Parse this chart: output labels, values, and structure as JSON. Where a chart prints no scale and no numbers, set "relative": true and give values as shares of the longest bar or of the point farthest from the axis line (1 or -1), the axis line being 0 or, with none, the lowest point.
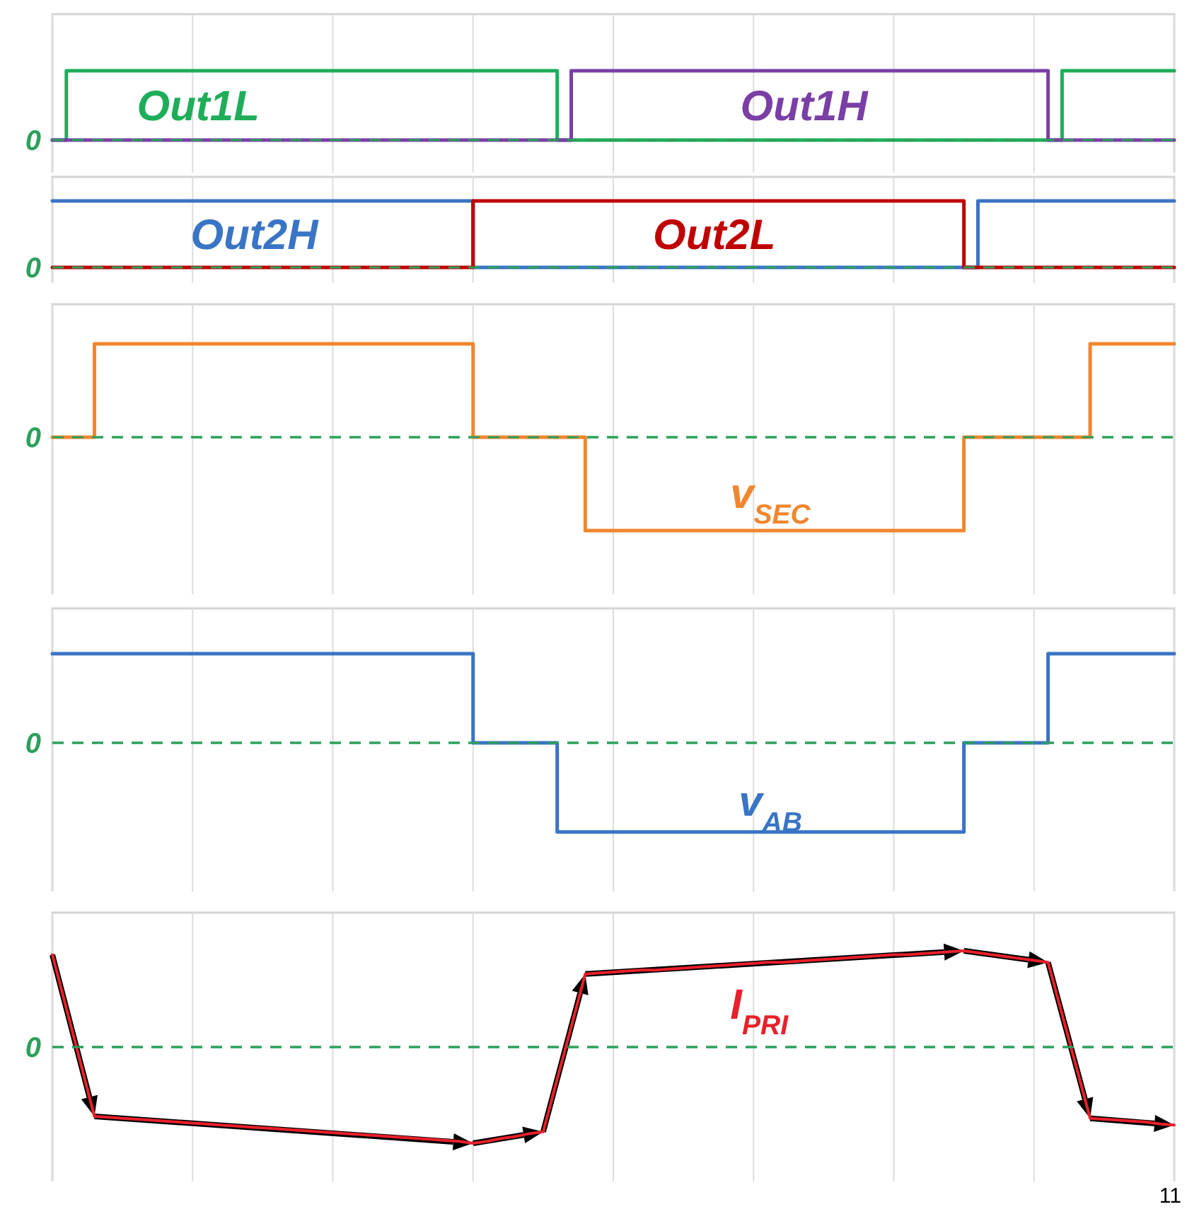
{
  "chart_data": [
    {
      "type": "step",
      "relative": true,
      "grid": "x",
      "categories": [
        null,
        null,
        null,
        null,
        null,
        null,
        null,
        null,
        null,
        null,
        null,
        null,
        null,
        null,
        null,
        null,
        null,
        null,
        null,
        null,
        null,
        null,
        null,
        null,
        null,
        null,
        null,
        null,
        null,
        null,
        null,
        null,
        null,
        null,
        null,
        null,
        null,
        null,
        null,
        null,
        null,
        null,
        null,
        null,
        null,
        null,
        null,
        null,
        null,
        null,
        null,
        null,
        null,
        null,
        null,
        null,
        null,
        null,
        null,
        null,
        null,
        null,
        null,
        null,
        null,
        null,
        null,
        null,
        null,
        null,
        null,
        null,
        null,
        null,
        null,
        null,
        null,
        null,
        null,
        null,
        null
      ],
      "ref_lines": [
        {
          "axis": "y",
          "value": 0,
          "label": "0",
          "color": "#2ca05a",
          "line_style": "dashed"
        }
      ],
      "series": [
        {
          "name": "Out1L",
          "color": "#1fad5a",
          "values": [
            0,
            1,
            1,
            1,
            1,
            1,
            1,
            1,
            1,
            1,
            1,
            1,
            1,
            1,
            1,
            1,
            1,
            1,
            1,
            1,
            1,
            1,
            1,
            1,
            1,
            1,
            1,
            1,
            1,
            1,
            1,
            1,
            1,
            1,
            1,
            1,
            0,
            0,
            0,
            0,
            0,
            0,
            0,
            0,
            0,
            0,
            0,
            0,
            0,
            0,
            0,
            0,
            0,
            0,
            0,
            0,
            0,
            0,
            0,
            0,
            0,
            0,
            0,
            0,
            0,
            0,
            0,
            0,
            0,
            0,
            0,
            0,
            1,
            1,
            1,
            1,
            1,
            1,
            1,
            1,
            1
          ]
        },
        {
          "name": "Out1H",
          "color": "#7a3fa6",
          "values": [
            0,
            0,
            0,
            0,
            0,
            0,
            0,
            0,
            0,
            0,
            0,
            0,
            0,
            0,
            0,
            0,
            0,
            0,
            0,
            0,
            0,
            0,
            0,
            0,
            0,
            0,
            0,
            0,
            0,
            0,
            0,
            0,
            0,
            0,
            0,
            0,
            0,
            1,
            1,
            1,
            1,
            1,
            1,
            1,
            1,
            1,
            1,
            1,
            1,
            1,
            1,
            1,
            1,
            1,
            1,
            1,
            1,
            1,
            1,
            1,
            1,
            1,
            1,
            1,
            1,
            1,
            1,
            1,
            1,
            1,
            1,
            0,
            0,
            0,
            0,
            0,
            0,
            0,
            0,
            0,
            0
          ]
        }
      ]
    },
    {
      "type": "step",
      "relative": true,
      "grid": "x",
      "categories": [
        null,
        null,
        null,
        null,
        null,
        null,
        null,
        null,
        null,
        null,
        null,
        null,
        null,
        null,
        null,
        null,
        null,
        null,
        null,
        null,
        null,
        null,
        null,
        null,
        null,
        null,
        null,
        null,
        null,
        null,
        null,
        null,
        null,
        null,
        null,
        null,
        null,
        null,
        null,
        null,
        null,
        null,
        null,
        null,
        null,
        null,
        null,
        null,
        null,
        null,
        null,
        null,
        null,
        null,
        null,
        null,
        null,
        null,
        null,
        null,
        null,
        null,
        null,
        null,
        null,
        null,
        null,
        null,
        null,
        null,
        null,
        null,
        null,
        null,
        null,
        null,
        null,
        null,
        null,
        null,
        null
      ],
      "ref_lines": [
        {
          "axis": "y",
          "value": 0,
          "label": "0",
          "color": "#2ca05a",
          "line_style": "dashed"
        }
      ],
      "series": [
        {
          "name": "Out2H",
          "color": "#3a74c4",
          "values": [
            1,
            1,
            1,
            1,
            1,
            1,
            1,
            1,
            1,
            1,
            1,
            1,
            1,
            1,
            1,
            1,
            1,
            1,
            1,
            1,
            1,
            1,
            1,
            1,
            1,
            1,
            1,
            1,
            1,
            1,
            0,
            0,
            0,
            0,
            0,
            0,
            0,
            0,
            0,
            0,
            0,
            0,
            0,
            0,
            0,
            0,
            0,
            0,
            0,
            0,
            0,
            0,
            0,
            0,
            0,
            0,
            0,
            0,
            0,
            0,
            0,
            0,
            0,
            0,
            0,
            0,
            1,
            1,
            1,
            1,
            1,
            1,
            1,
            1,
            1,
            1,
            1,
            1,
            1,
            1,
            1
          ]
        },
        {
          "name": "Out2L",
          "color": "#c00000",
          "values": [
            0,
            0,
            0,
            0,
            0,
            0,
            0,
            0,
            0,
            0,
            0,
            0,
            0,
            0,
            0,
            0,
            0,
            0,
            0,
            0,
            0,
            0,
            0,
            0,
            0,
            0,
            0,
            0,
            0,
            0,
            1,
            1,
            1,
            1,
            1,
            1,
            1,
            1,
            1,
            1,
            1,
            1,
            1,
            1,
            1,
            1,
            1,
            1,
            1,
            1,
            1,
            1,
            1,
            1,
            1,
            1,
            1,
            1,
            1,
            1,
            1,
            1,
            1,
            1,
            1,
            0,
            0,
            0,
            0,
            0,
            0,
            0,
            0,
            0,
            0,
            0,
            0,
            0,
            0,
            0,
            0
          ]
        }
      ]
    },
    {
      "type": "step",
      "relative": true,
      "grid": "x",
      "categories": [
        null,
        null,
        null,
        null,
        null,
        null,
        null,
        null,
        null,
        null,
        null,
        null,
        null,
        null,
        null,
        null,
        null,
        null,
        null,
        null,
        null,
        null,
        null,
        null,
        null,
        null,
        null,
        null,
        null,
        null,
        null,
        null,
        null,
        null,
        null,
        null,
        null,
        null,
        null,
        null,
        null,
        null,
        null,
        null,
        null,
        null,
        null,
        null,
        null,
        null,
        null,
        null,
        null,
        null,
        null,
        null,
        null,
        null,
        null,
        null,
        null,
        null,
        null,
        null,
        null,
        null,
        null,
        null,
        null,
        null,
        null,
        null,
        null,
        null,
        null,
        null,
        null,
        null,
        null,
        null,
        null
      ],
      "ref_lines": [
        {
          "axis": "y",
          "value": 0,
          "label": "0",
          "color": "#2ca05a",
          "line_style": "dashed"
        }
      ],
      "series": [
        {
          "name": "v$_{SEC}$",
          "color": "#f0862e",
          "values": [
            0,
            0,
            0,
            1,
            1,
            1,
            1,
            1,
            1,
            1,
            1,
            1,
            1,
            1,
            1,
            1,
            1,
            1,
            1,
            1,
            1,
            1,
            1,
            1,
            1,
            1,
            1,
            1,
            1,
            1,
            0,
            0,
            0,
            0,
            0,
            0,
            0,
            0,
            -1,
            -1,
            -1,
            -1,
            -1,
            -1,
            -1,
            -1,
            -1,
            -1,
            -1,
            -1,
            -1,
            -1,
            -1,
            -1,
            -1,
            -1,
            -1,
            -1,
            -1,
            -1,
            -1,
            -1,
            -1,
            -1,
            -1,
            0,
            0,
            0,
            0,
            0,
            0,
            0,
            0,
            0,
            1,
            1,
            1,
            1,
            1,
            1,
            1
          ]
        }
      ]
    },
    {
      "type": "step",
      "relative": true,
      "grid": "x",
      "categories": [
        null,
        null,
        null,
        null,
        null,
        null,
        null,
        null,
        null,
        null,
        null,
        null,
        null,
        null,
        null,
        null,
        null,
        null,
        null,
        null,
        null,
        null,
        null,
        null,
        null,
        null,
        null,
        null,
        null,
        null,
        null,
        null,
        null,
        null,
        null,
        null,
        null,
        null,
        null,
        null,
        null,
        null,
        null,
        null,
        null,
        null,
        null,
        null,
        null,
        null,
        null,
        null,
        null,
        null,
        null,
        null,
        null,
        null,
        null,
        null,
        null,
        null,
        null,
        null,
        null,
        null,
        null,
        null,
        null,
        null,
        null,
        null,
        null,
        null,
        null,
        null,
        null,
        null,
        null,
        null,
        null
      ],
      "ref_lines": [
        {
          "axis": "y",
          "value": 0,
          "label": "0",
          "color": "#2ca05a",
          "line_style": "dashed"
        }
      ],
      "series": [
        {
          "name": "v$_{AB}$",
          "color": "#3a74c4",
          "values": [
            1,
            1,
            1,
            1,
            1,
            1,
            1,
            1,
            1,
            1,
            1,
            1,
            1,
            1,
            1,
            1,
            1,
            1,
            1,
            1,
            1,
            1,
            1,
            1,
            1,
            1,
            1,
            1,
            1,
            1,
            0,
            0,
            0,
            0,
            0,
            0,
            -1,
            -1,
            -1,
            -1,
            -1,
            -1,
            -1,
            -1,
            -1,
            -1,
            -1,
            -1,
            -1,
            -1,
            -1,
            -1,
            -1,
            -1,
            -1,
            -1,
            -1,
            -1,
            -1,
            -1,
            -1,
            -1,
            -1,
            -1,
            -1,
            0,
            0,
            0,
            0,
            0,
            0,
            1,
            1,
            1,
            1,
            1,
            1,
            1,
            1,
            1,
            1
          ]
        }
      ]
    },
    {
      "type": "line",
      "relative": true,
      "grid": "x",
      "categories": [
        null,
        null,
        null,
        null,
        null,
        null,
        null,
        null,
        null,
        null,
        null,
        null,
        null,
        null,
        null,
        null,
        null,
        null,
        null,
        null,
        null,
        null,
        null,
        null,
        null,
        null,
        null,
        null,
        null,
        null,
        null,
        null,
        null,
        null,
        null,
        null,
        null,
        null,
        null,
        null,
        null,
        null,
        null,
        null,
        null,
        null,
        null,
        null,
        null,
        null,
        null,
        null,
        null,
        null,
        null,
        null,
        null,
        null,
        null,
        null,
        null,
        null,
        null,
        null,
        null,
        null,
        null,
        null,
        null,
        null,
        null,
        null,
        null,
        null,
        null,
        null,
        null,
        null,
        null,
        null,
        null
      ],
      "ref_lines": [
        {
          "axis": "y",
          "value": 0,
          "label": "0",
          "color": "#2ca05a",
          "line_style": "dashed"
        }
      ],
      "annotations": [
        "11"
      ],
      "series": [
        {
          "name": "I$_{PRI}$",
          "color": "#e8202a",
          "values": [
            0.96,
            0.4,
            -0.16,
            -0.72,
            -0.73,
            -0.74,
            -0.75,
            -0.76,
            -0.77,
            -0.78,
            -0.79,
            -0.8,
            -0.81,
            -0.82,
            -0.83,
            -0.84,
            -0.85,
            -0.86,
            -0.87,
            -0.88,
            -0.89,
            -0.9,
            -0.91,
            -0.92,
            -0.93,
            -0.94,
            -0.95,
            -0.96,
            -0.97,
            -0.98,
            -1.0,
            -0.98,
            -0.95,
            -0.93,
            -0.9,
            -0.88,
            -0.33,
            0.21,
            0.76,
            0.77,
            0.78,
            0.79,
            0.8,
            0.8,
            0.81,
            0.82,
            0.83,
            0.84,
            0.85,
            0.86,
            0.87,
            0.88,
            0.88,
            0.89,
            0.9,
            0.91,
            0.92,
            0.93,
            0.94,
            0.95,
            0.96,
            0.96,
            0.97,
            0.98,
            0.99,
            1.0,
            0.98,
            0.96,
            0.94,
            0.92,
            0.9,
            0.88,
            0.34,
            -0.2,
            -0.74,
            -0.75,
            -0.76,
            -0.77,
            -0.78,
            -0.8,
            -0.81
          ]
        }
      ]
    }
  ]
}
